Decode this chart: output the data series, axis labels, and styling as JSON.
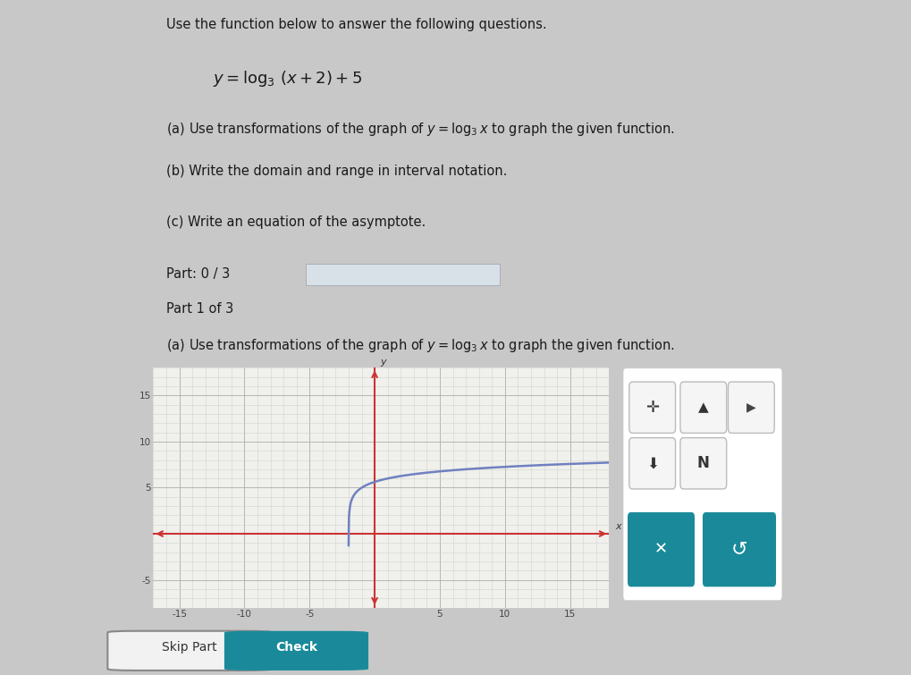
{
  "page_bg": "#c8c8c8",
  "left_sidebar_color": "#8b2020",
  "content_bg": "#ffffff",
  "section_bar_color": "#b8bec8",
  "section_bar2_color": "#c8cdd5",
  "bottom_area_color": "#d8dae0",
  "title_text": "Use the function below to answer the following questions.",
  "part_a_text": "(a) Use transformations of the graph of ",
  "part_a_text2": " to graph the given function.",
  "part_b_text": "(b) Write the domain and range in interval notation.",
  "part_c_text": "(c) Write an equation of the asymptote.",
  "part_label": "Part: 0 / 3",
  "part1_label": "Part 1 of 3",
  "part1_instruction_pre": "(a) Use transformations of the graph of ",
  "part1_instruction_post": " to graph the given function.",
  "graph_xlim": [
    -17,
    18
  ],
  "graph_ylim": [
    -8,
    18
  ],
  "graph_xticks": [
    -15,
    -10,
    -5,
    5,
    10,
    15
  ],
  "graph_yticks": [
    -5,
    5,
    10,
    15
  ],
  "curve_color": "#7080c0",
  "axis_color": "#cc3333",
  "grid_color": "#d0d0d0",
  "graph_bg": "#f0f0ec",
  "teal_btn_color": "#1a8a9a",
  "progress_bar_color": "#d8e0e8"
}
